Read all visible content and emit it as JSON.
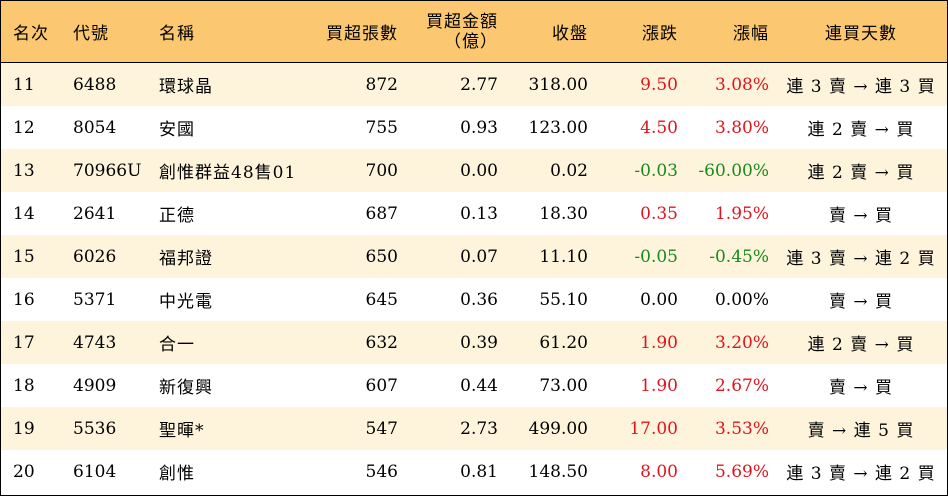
{
  "columns": {
    "rank": "名次",
    "code": "代號",
    "name": "名稱",
    "net_buy_lots": "買超張數",
    "net_buy_amount_line1": "買超金額",
    "net_buy_amount_line2": "（億）",
    "close": "收盤",
    "change": "漲跌",
    "change_pct": "漲幅",
    "streak": "連買天數"
  },
  "colors": {
    "header_bg": "#fbc770",
    "alt_row_bg": "#fef4dc",
    "up": "#e0141e",
    "down": "#1a8a1a"
  },
  "rows": [
    {
      "rank": "11",
      "code": "6488",
      "name": "環球晶",
      "lots": "872",
      "amount": "2.77",
      "close": "318.00",
      "change": "9.50",
      "pct": "3.08%",
      "dir": "up",
      "streak": "連 3 賣 → 連 3 買"
    },
    {
      "rank": "12",
      "code": "8054",
      "name": "安國",
      "lots": "755",
      "amount": "0.93",
      "close": "123.00",
      "change": "4.50",
      "pct": "3.80%",
      "dir": "up",
      "streak": "連 2 賣 → 買"
    },
    {
      "rank": "13",
      "code": "70966U",
      "name": "創惟群益48售01",
      "lots": "700",
      "amount": "0.00",
      "close": "0.02",
      "change": "-0.03",
      "pct": "-60.00%",
      "dir": "down",
      "streak": "連 2 賣 → 買"
    },
    {
      "rank": "14",
      "code": "2641",
      "name": "正德",
      "lots": "687",
      "amount": "0.13",
      "close": "18.30",
      "change": "0.35",
      "pct": "1.95%",
      "dir": "up",
      "streak": "賣 → 買"
    },
    {
      "rank": "15",
      "code": "6026",
      "name": "福邦證",
      "lots": "650",
      "amount": "0.07",
      "close": "11.10",
      "change": "-0.05",
      "pct": "-0.45%",
      "dir": "down",
      "streak": "連 3 賣 → 連 2 買"
    },
    {
      "rank": "16",
      "code": "5371",
      "name": "中光電",
      "lots": "645",
      "amount": "0.36",
      "close": "55.10",
      "change": "0.00",
      "pct": "0.00%",
      "dir": "flat",
      "streak": "賣 → 買"
    },
    {
      "rank": "17",
      "code": "4743",
      "name": "合一",
      "lots": "632",
      "amount": "0.39",
      "close": "61.20",
      "change": "1.90",
      "pct": "3.20%",
      "dir": "up",
      "streak": "連 2 賣 → 買"
    },
    {
      "rank": "18",
      "code": "4909",
      "name": "新復興",
      "lots": "607",
      "amount": "0.44",
      "close": "73.00",
      "change": "1.90",
      "pct": "2.67%",
      "dir": "up",
      "streak": "賣 → 買"
    },
    {
      "rank": "19",
      "code": "5536",
      "name": "聖暉*",
      "lots": "547",
      "amount": "2.73",
      "close": "499.00",
      "change": "17.00",
      "pct": "3.53%",
      "dir": "up",
      "streak": "賣 → 連 5 買"
    },
    {
      "rank": "20",
      "code": "6104",
      "name": "創惟",
      "lots": "546",
      "amount": "0.81",
      "close": "148.50",
      "change": "8.00",
      "pct": "5.69%",
      "dir": "up",
      "streak": "連 3 賣 → 連 2 買"
    }
  ]
}
